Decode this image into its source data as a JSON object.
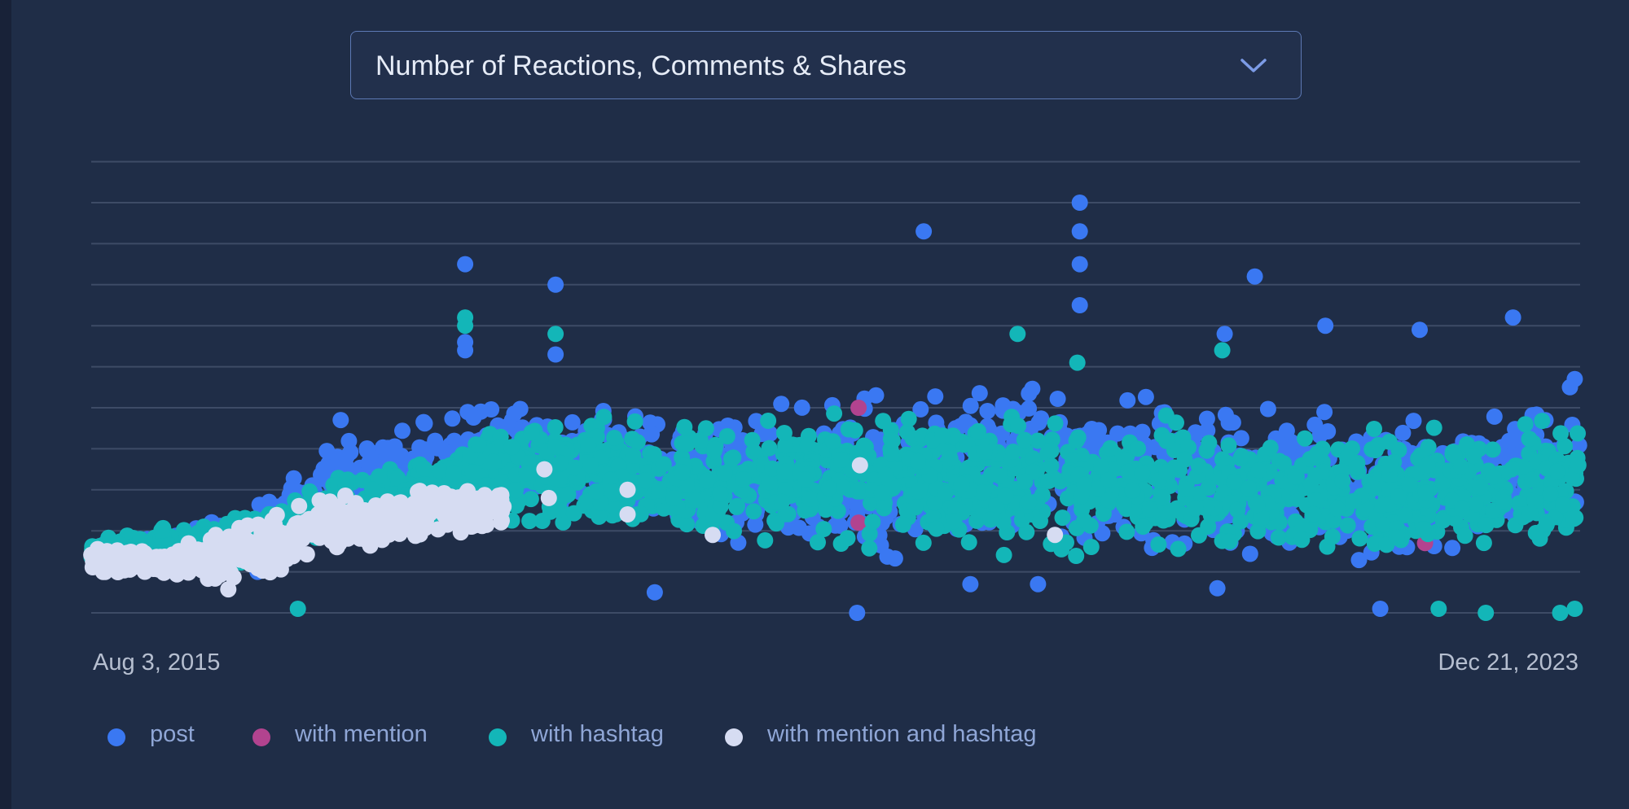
{
  "metric_selector": {
    "selected": "Number of Reactions, Comments & Shares"
  },
  "icons": {
    "dropdown": "chevron-down-icon"
  },
  "colors": {
    "background": "#1f2d47",
    "post": "#3a78f2",
    "with_mention": "#b2438f",
    "with_hashtag": "#13b6b8",
    "with_mention_and_hashtag": "#d6dcf2",
    "gridline": "#3d4b66",
    "accent": "#5d79b4"
  },
  "chart_data": {
    "type": "scatter",
    "title": "Number of Reactions, Comments & Shares",
    "xlabel": "",
    "ylabel": "",
    "x_range": [
      "Aug 3, 2015",
      "Dec 21, 2023"
    ],
    "x_tick_labels": [
      "Aug 3, 2015",
      "Dec 21, 2023"
    ],
    "y_tick_labels": [],
    "grid": true,
    "legend_position": "bottom",
    "note": "Dense scatter of posts; y-axis is unlabeled, values expressed in relative units 0-11 (one unit per gridline). Dense regions summarized as date/level envelopes.",
    "series": [
      {
        "name": "post",
        "outliers": [
          {
            "x": "2017-09-10",
            "y": 8.5
          },
          {
            "x": "2017-09-10",
            "y": 6.6
          },
          {
            "x": "2017-09-10",
            "y": 6.4
          },
          {
            "x": "2018-03-15",
            "y": 8.0
          },
          {
            "x": "2018-03-15",
            "y": 6.3
          },
          {
            "x": "2016-12-28",
            "y": 4.7
          },
          {
            "x": "2020-04-10",
            "y": 9.3
          },
          {
            "x": "2021-02-25",
            "y": 10.0
          },
          {
            "x": "2021-02-25",
            "y": 9.3
          },
          {
            "x": "2021-02-25",
            "y": 8.5
          },
          {
            "x": "2021-02-25",
            "y": 7.5
          },
          {
            "x": "2022-02-20",
            "y": 8.2
          },
          {
            "x": "2021-12-20",
            "y": 6.8
          },
          {
            "x": "2022-07-15",
            "y": 7.0
          },
          {
            "x": "2023-01-25",
            "y": 6.9
          },
          {
            "x": "2023-08-05",
            "y": 7.2
          },
          {
            "x": "2023-12-10",
            "y": 5.7
          },
          {
            "x": "2023-11-30",
            "y": 5.5
          },
          {
            "x": "2018-10-05",
            "y": 0.5
          },
          {
            "x": "2019-11-25",
            "y": 0.0
          },
          {
            "x": "2020-07-15",
            "y": 0.7
          },
          {
            "x": "2020-12-01",
            "y": 0.7
          },
          {
            "x": "2021-12-05",
            "y": 0.6
          },
          {
            "x": "2022-11-05",
            "y": 0.1
          },
          {
            "x": "2016-07-10",
            "y": 1.0
          }
        ],
        "dense_band": [
          {
            "x": "2015-08-03",
            "y_min": 1.0,
            "y_max": 1.8
          },
          {
            "x": "2016-06-01",
            "y_min": 1.1,
            "y_max": 2.5
          },
          {
            "x": "2017-01-01",
            "y_min": 1.5,
            "y_max": 4.7
          },
          {
            "x": "2018-01-01",
            "y_min": 2.3,
            "y_max": 5.5
          },
          {
            "x": "2019-01-01",
            "y_min": 1.2,
            "y_max": 5.2
          },
          {
            "x": "2020-01-01",
            "y_min": 1.0,
            "y_max": 5.6
          },
          {
            "x": "2021-01-01",
            "y_min": 1.0,
            "y_max": 6.2
          },
          {
            "x": "2022-01-01",
            "y_min": 1.0,
            "y_max": 5.6
          },
          {
            "x": "2023-01-01",
            "y_min": 1.0,
            "y_max": 5.2
          },
          {
            "x": "2023-12-21",
            "y_min": 1.2,
            "y_max": 5.8
          }
        ]
      },
      {
        "name": "with mention",
        "points": [
          {
            "x": "2019-11-28",
            "y": 5.0
          },
          {
            "x": "2019-11-28",
            "y": 2.2
          },
          {
            "x": "2023-02-05",
            "y": 1.7
          }
        ]
      },
      {
        "name": "with hashtag",
        "outliers": [
          {
            "x": "2017-09-10",
            "y": 7.2
          },
          {
            "x": "2017-09-10",
            "y": 7.0
          },
          {
            "x": "2018-03-15",
            "y": 6.8
          },
          {
            "x": "2020-10-20",
            "y": 6.8
          },
          {
            "x": "2021-02-20",
            "y": 6.1
          },
          {
            "x": "2021-12-15",
            "y": 6.4
          },
          {
            "x": "2016-10-01",
            "y": 0.1
          },
          {
            "x": "2023-03-05",
            "y": 0.1
          },
          {
            "x": "2023-06-10",
            "y": 0.0
          },
          {
            "x": "2023-11-10",
            "y": 0.0
          },
          {
            "x": "2023-12-10",
            "y": 0.1
          }
        ],
        "dense_band": [
          {
            "x": "2015-08-03",
            "y_min": 1.1,
            "y_max": 1.8
          },
          {
            "x": "2016-06-01",
            "y_min": 1.0,
            "y_max": 2.5
          },
          {
            "x": "2017-01-01",
            "y_min": 1.5,
            "y_max": 3.6
          },
          {
            "x": "2018-01-01",
            "y_min": 1.8,
            "y_max": 5.0
          },
          {
            "x": "2019-01-01",
            "y_min": 1.5,
            "y_max": 5.0
          },
          {
            "x": "2020-01-01",
            "y_min": 1.3,
            "y_max": 5.2
          },
          {
            "x": "2021-01-01",
            "y_min": 1.1,
            "y_max": 5.2
          },
          {
            "x": "2022-01-01",
            "y_min": 1.1,
            "y_max": 5.0
          },
          {
            "x": "2023-01-01",
            "y_min": 1.1,
            "y_max": 4.8
          },
          {
            "x": "2023-12-21",
            "y_min": 1.3,
            "y_max": 5.1
          }
        ]
      },
      {
        "name": "with mention and hashtag",
        "points_summary": [
          {
            "x": "2015-08-03",
            "y_min": 1.0,
            "y_max": 1.6
          },
          {
            "x": "2016-01-01",
            "y_min": 0.9,
            "y_max": 1.5
          },
          {
            "x": "2016-06-01",
            "y_min": 0.5,
            "y_max": 2.2
          },
          {
            "x": "2016-12-01",
            "y_min": 1.4,
            "y_max": 2.9
          },
          {
            "x": "2017-06-01",
            "y_min": 1.8,
            "y_max": 3.0
          },
          {
            "x": "2017-12-01",
            "y_min": 2.1,
            "y_max": 3.1
          }
        ],
        "points": [
          {
            "x": "2018-02-20",
            "y": 3.5
          },
          {
            "x": "2018-03-01",
            "y": 2.8
          },
          {
            "x": "2018-08-10",
            "y": 3.0
          },
          {
            "x": "2018-08-10",
            "y": 2.4
          },
          {
            "x": "2019-02-01",
            "y": 1.9
          },
          {
            "x": "2019-12-01",
            "y": 3.6
          },
          {
            "x": "2021-01-05",
            "y": 1.9
          }
        ]
      }
    ]
  },
  "x_axis": {
    "start_label": "Aug 3, 2015",
    "end_label": "Dec 21, 2023"
  },
  "legend": [
    {
      "label": "post",
      "color": "#3a78f2"
    },
    {
      "label": "with mention",
      "color": "#b2438f"
    },
    {
      "label": "with hashtag",
      "color": "#13b6b8"
    },
    {
      "label": "with mention and hashtag",
      "color": "#d6dcf2"
    }
  ]
}
